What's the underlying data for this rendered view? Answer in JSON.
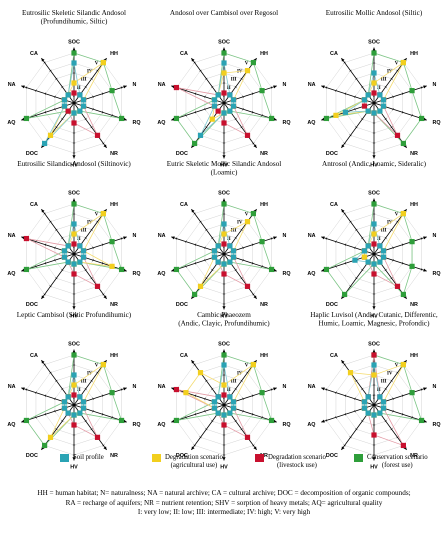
{
  "legend": [
    {
      "label": "Soil profile",
      "color": "#2aa3b4"
    },
    {
      "label": "Degradation scenario",
      "label2": "(agricultural use)",
      "color": "#f2cf1e"
    },
    {
      "label": "Degradation scenario",
      "label2": "(livestock use)",
      "color": "#c8102e"
    },
    {
      "label": "Conservation scenario",
      "label2": "(forest use)",
      "color": "#2e9e3a"
    }
  ],
  "footnote": {
    "line1": "HH = human habitat; N= naturalness; NA = natural archive; CA = cultural archive; DOC = decomposition of organic compounds;",
    "line2": "RA = recharge of aquifers; NR = nutrient retention; SHV = sorption of heavy metals; AQ= agricultural quality",
    "line3": "I: very low; II: low; III: intermediate; IV: high; V: very high"
  },
  "chart_data": [
    {
      "type": "radar",
      "title": [
        "Eutrosilic Skeletic Silandic Andosol",
        "(Profundihumic, Siltic)"
      ],
      "axes": [
        "SOC",
        "HH",
        "N",
        "RQ",
        "NR",
        "HV",
        "DOC",
        "AQ",
        "NA",
        "CA"
      ],
      "levels": [
        "I",
        "II",
        "III",
        "IV",
        "V"
      ],
      "series": [
        {
          "name": "Soil profile",
          "values": [
            4,
            1,
            1,
            1,
            1,
            1,
            5,
            1,
            1,
            1
          ]
        },
        {
          "name": "Degradation scenario (agricultural use)",
          "values": [
            2,
            5,
            1,
            1,
            1,
            1,
            4,
            1,
            1,
            1
          ]
        },
        {
          "name": "Degradation scenario (livestock use)",
          "values": [
            1,
            1,
            1,
            1,
            4,
            2,
            1,
            1,
            1,
            1
          ]
        },
        {
          "name": "Conservation scenario (forest use)",
          "values": [
            5,
            5,
            4,
            5,
            1,
            1,
            1,
            5,
            1,
            1
          ]
        }
      ]
    },
    {
      "type": "radar",
      "title": [
        "Andosol over Cambisol over Regosol"
      ],
      "axes": [
        "SOC",
        "HH",
        "N",
        "RQ",
        "NR",
        "HV",
        "DOC",
        "AQ",
        "NA",
        "CA"
      ],
      "levels": [
        "I",
        "II",
        "III",
        "IV",
        "V"
      ],
      "series": [
        {
          "name": "Soil profile",
          "values": [
            4,
            1,
            1,
            1,
            1,
            1,
            4,
            1,
            1,
            1
          ]
        },
        {
          "name": "Degradation scenario (agricultural use)",
          "values": [
            3,
            4,
            1,
            1,
            1,
            1,
            2,
            1,
            1,
            1
          ]
        },
        {
          "name": "Degradation scenario (livestock use)",
          "values": [
            1,
            1,
            1,
            1,
            4,
            2,
            1,
            1,
            5,
            1
          ]
        },
        {
          "name": "Conservation scenario (forest use)",
          "values": [
            5,
            5,
            4,
            5,
            1,
            1,
            5,
            5,
            1,
            1
          ]
        }
      ]
    },
    {
      "type": "radar",
      "title": [
        "Eutrosilic Mollic Andosol (Siltic)"
      ],
      "axes": [
        "SOC",
        "HH",
        "N",
        "RQ",
        "NR",
        "HV",
        "DOC",
        "AQ",
        "NA",
        "CA"
      ],
      "levels": [
        "I",
        "II",
        "III",
        "IV",
        "V"
      ],
      "series": [
        {
          "name": "Soil profile",
          "values": [
            3,
            1,
            1,
            1,
            1,
            1,
            1,
            3,
            1,
            1
          ]
        },
        {
          "name": "Degradation scenario (agricultural use)",
          "values": [
            2,
            5,
            1,
            1,
            1,
            1,
            1,
            4,
            1,
            1
          ]
        },
        {
          "name": "Degradation scenario (livestock use)",
          "values": [
            1,
            1,
            1,
            1,
            4,
            1,
            1,
            1,
            1,
            1
          ]
        },
        {
          "name": "Conservation scenario (forest use)",
          "values": [
            5,
            5,
            4,
            5,
            5,
            1,
            1,
            5,
            1,
            1
          ]
        }
      ]
    },
    {
      "type": "radar",
      "title": [
        "Eutrosilic Silandic Andosol (Siltinovic)"
      ],
      "axes": [
        "SOC",
        "HH",
        "N",
        "RQ",
        "NR",
        "HV",
        "DOC",
        "AQ",
        "NA",
        "CA"
      ],
      "levels": [
        "I",
        "II",
        "III",
        "IV",
        "V"
      ],
      "series": [
        {
          "name": "Soil profile",
          "values": [
            3,
            1,
            1,
            1,
            1,
            1,
            1,
            1,
            1,
            1
          ]
        },
        {
          "name": "Degradation scenario (agricultural use)",
          "values": [
            2,
            5,
            1,
            4,
            1,
            1,
            1,
            1,
            1,
            1
          ]
        },
        {
          "name": "Degradation scenario (livestock use)",
          "values": [
            1,
            1,
            1,
            1,
            4,
            2,
            1,
            1,
            5,
            1
          ]
        },
        {
          "name": "Conservation scenario (forest use)",
          "values": [
            5,
            5,
            4,
            5,
            1,
            1,
            1,
            5,
            1,
            1
          ]
        }
      ]
    },
    {
      "type": "radar",
      "title": [
        "Eutric Skeletic Mollic Silandic Andosol",
        "(Loamic)"
      ],
      "axes": [
        "SOC",
        "HH",
        "N",
        "RQ",
        "NR",
        "HV",
        "DOC",
        "AQ",
        "NA",
        "CA"
      ],
      "levels": [
        "I",
        "II",
        "III",
        "IV",
        "V"
      ],
      "series": [
        {
          "name": "Soil profile",
          "values": [
            3,
            1,
            1,
            1,
            1,
            1,
            1,
            1,
            1,
            1
          ]
        },
        {
          "name": "Degradation scenario (agricultural use)",
          "values": [
            2,
            4,
            1,
            1,
            1,
            1,
            4,
            1,
            1,
            1
          ]
        },
        {
          "name": "Degradation scenario (livestock use)",
          "values": [
            1,
            1,
            1,
            1,
            4,
            2,
            1,
            1,
            1,
            1
          ]
        },
        {
          "name": "Conservation scenario (forest use)",
          "values": [
            5,
            5,
            4,
            5,
            1,
            1,
            5,
            5,
            1,
            1
          ]
        }
      ]
    },
    {
      "type": "radar",
      "title": [
        "Antrosol (Andic, Loamic, Sideralic)"
      ],
      "axes": [
        "SOC",
        "HH",
        "N",
        "RQ",
        "NR",
        "HV",
        "DOC",
        "AQ",
        "NA",
        "CA"
      ],
      "levels": [
        "I",
        "II",
        "III",
        "IV",
        "V"
      ],
      "series": [
        {
          "name": "Soil profile",
          "values": [
            3,
            1,
            1,
            1,
            1,
            1,
            1,
            2,
            1,
            1
          ]
        },
        {
          "name": "Degradation scenario (agricultural use)",
          "values": [
            2,
            5,
            1,
            1,
            1,
            1,
            1,
            1,
            1,
            1
          ]
        },
        {
          "name": "Degradation scenario (livestock use)",
          "values": [
            1,
            1,
            1,
            1,
            4,
            2,
            1,
            1,
            1,
            1
          ]
        },
        {
          "name": "Conservation scenario (forest use)",
          "values": [
            5,
            5,
            4,
            4,
            5,
            1,
            5,
            5,
            1,
            1
          ]
        }
      ]
    },
    {
      "type": "radar",
      "title": [
        "Leptic Cambisol (Siltic Profundihumic)"
      ],
      "axes": [
        "SOC",
        "HH",
        "N",
        "RQ",
        "NR",
        "HV",
        "DOC",
        "AQ",
        "NA",
        "CA"
      ],
      "levels": [
        "I",
        "II",
        "III",
        "IV",
        "V"
      ],
      "series": [
        {
          "name": "Soil profile",
          "values": [
            3,
            1,
            1,
            1,
            1,
            1,
            1,
            1,
            1,
            1
          ]
        },
        {
          "name": "Degradation scenario (agricultural use)",
          "values": [
            2,
            5,
            1,
            1,
            1,
            1,
            4,
            1,
            1,
            1
          ]
        },
        {
          "name": "Degradation scenario (livestock use)",
          "values": [
            1,
            1,
            1,
            1,
            4,
            2,
            1,
            1,
            1,
            1
          ]
        },
        {
          "name": "Conservation scenario (forest use)",
          "values": [
            5,
            5,
            4,
            5,
            1,
            1,
            5,
            5,
            1,
            1
          ]
        }
      ]
    },
    {
      "type": "radar",
      "title": [
        "Cambic Phaeozem",
        "(Andic, Clayic, Profundihumic)"
      ],
      "axes": [
        "SOC",
        "HH",
        "N",
        "RQ",
        "NR",
        "HV",
        "DOC",
        "AQ",
        "NA",
        "CA"
      ],
      "levels": [
        "I",
        "II",
        "III",
        "IV",
        "V"
      ],
      "series": [
        {
          "name": "Soil profile",
          "values": [
            4,
            1,
            1,
            1,
            1,
            1,
            1,
            1,
            1,
            1
          ]
        },
        {
          "name": "Degradation scenario (agricultural use)",
          "values": [
            2,
            5,
            1,
            1,
            1,
            1,
            1,
            1,
            4,
            4
          ]
        },
        {
          "name": "Degradation scenario (livestock use)",
          "values": [
            1,
            1,
            1,
            1,
            4,
            2,
            1,
            1,
            5,
            1
          ]
        },
        {
          "name": "Conservation scenario (forest use)",
          "values": [
            5,
            5,
            4,
            5,
            1,
            1,
            1,
            5,
            1,
            1
          ]
        }
      ]
    },
    {
      "type": "radar",
      "title": [
        "Haplic Luvisol (Andic, Cutanic, Differentic,",
        "Humic, Loamic, Magnesic, Profondic)"
      ],
      "axes": [
        "SOC",
        "HH",
        "N",
        "RQ",
        "NR",
        "HV",
        "DOC",
        "AQ",
        "NA",
        "CA"
      ],
      "levels": [
        "I",
        "II",
        "III",
        "IV",
        "V"
      ],
      "series": [
        {
          "name": "Soil profile",
          "values": [
            4,
            1,
            1,
            1,
            1,
            1,
            1,
            1,
            1,
            1
          ]
        },
        {
          "name": "Degradation scenario (agricultural use)",
          "values": [
            3,
            5,
            1,
            1,
            1,
            1,
            1,
            1,
            1,
            4
          ]
        },
        {
          "name": "Degradation scenario (livestock use)",
          "values": [
            5,
            1,
            1,
            1,
            5,
            3,
            1,
            1,
            1,
            1
          ]
        },
        {
          "name": "Conservation scenario (forest use)",
          "values": [
            5,
            5,
            4,
            5,
            1,
            1,
            1,
            1,
            1,
            1
          ]
        }
      ]
    }
  ]
}
